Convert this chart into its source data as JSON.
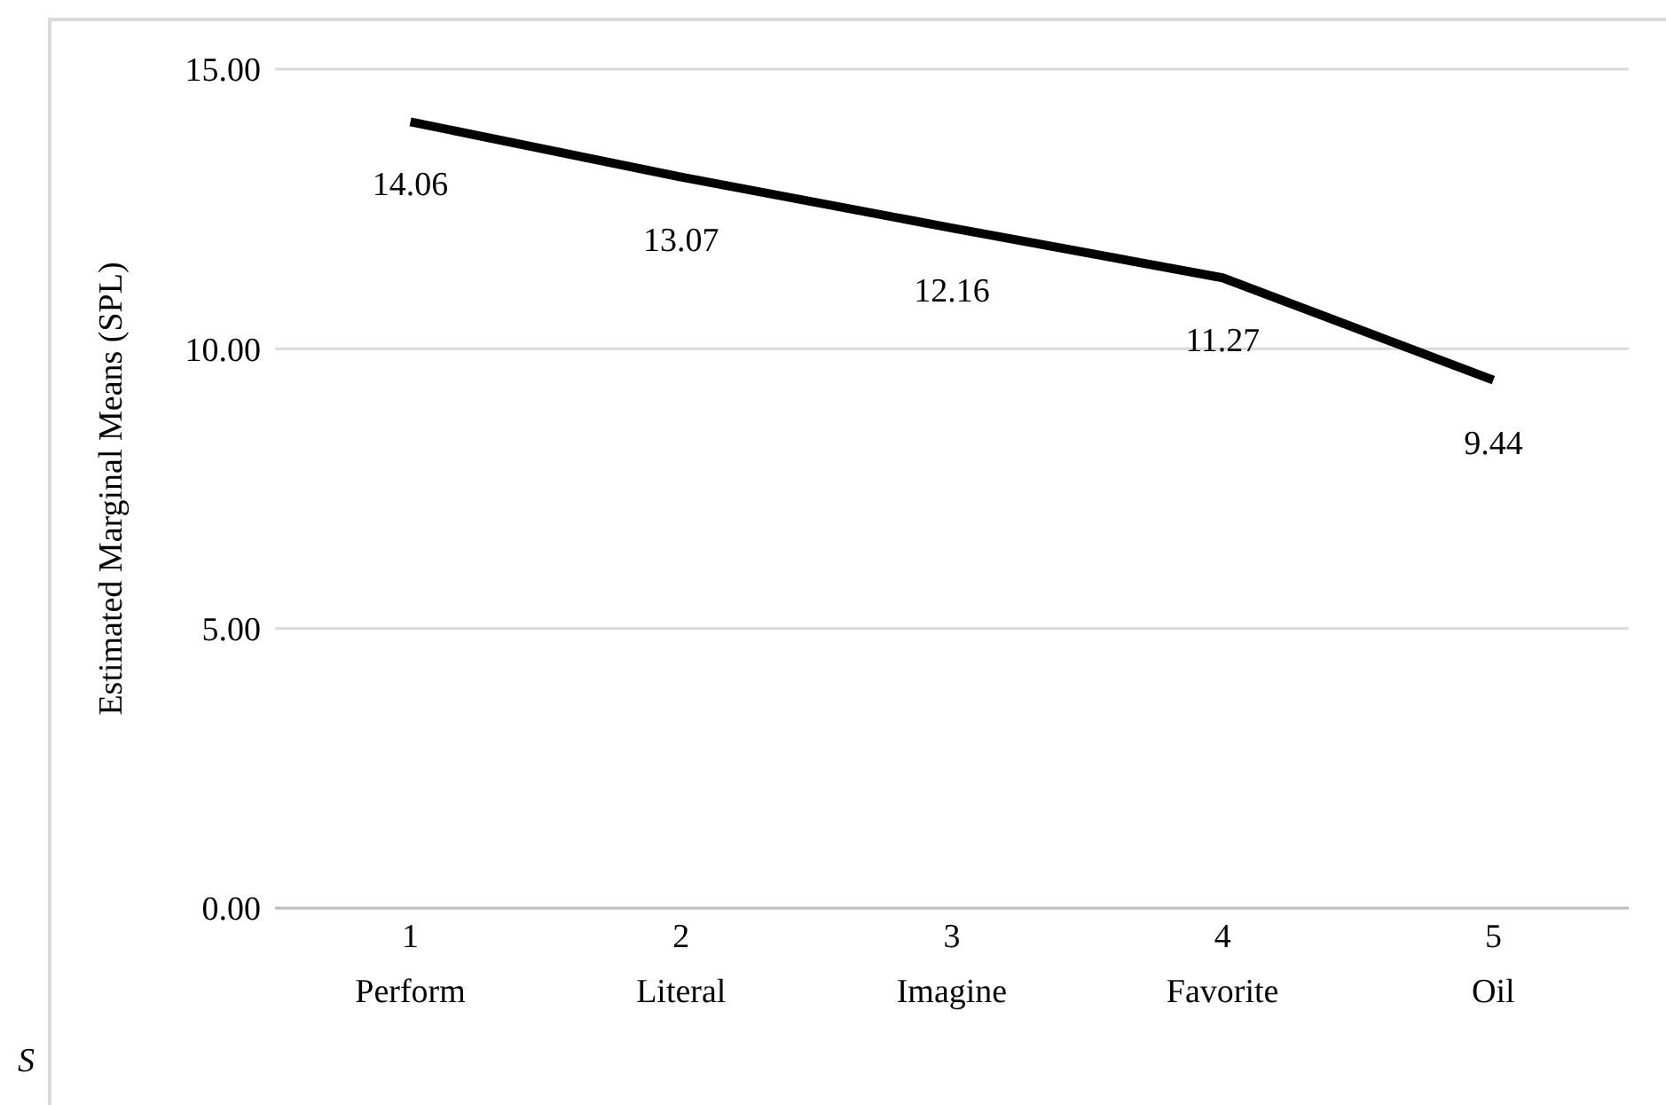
{
  "chart_data": {
    "type": "line",
    "ylabel": "Estimated Marginal Means (SPL)",
    "categories": [
      "1\nPerform",
      "2\nLiteral",
      "3\nImagine",
      "4\nFavorite",
      "5\nOil"
    ],
    "series": [
      {
        "color": "#000000",
        "values": [
          14.06,
          13.07,
          12.16,
          11.27,
          9.44
        ]
      }
    ],
    "ylim": [
      0,
      15
    ],
    "yticks": [
      {
        "value": 0,
        "label": "0.00"
      },
      {
        "value": 5,
        "label": "5.00"
      },
      {
        "value": 10,
        "label": "10.00"
      },
      {
        "value": 15,
        "label": "15.00"
      }
    ],
    "grid": "y",
    "data_labels": true,
    "marker": "none",
    "line_style": "solid",
    "annotations": [
      "S"
    ]
  }
}
